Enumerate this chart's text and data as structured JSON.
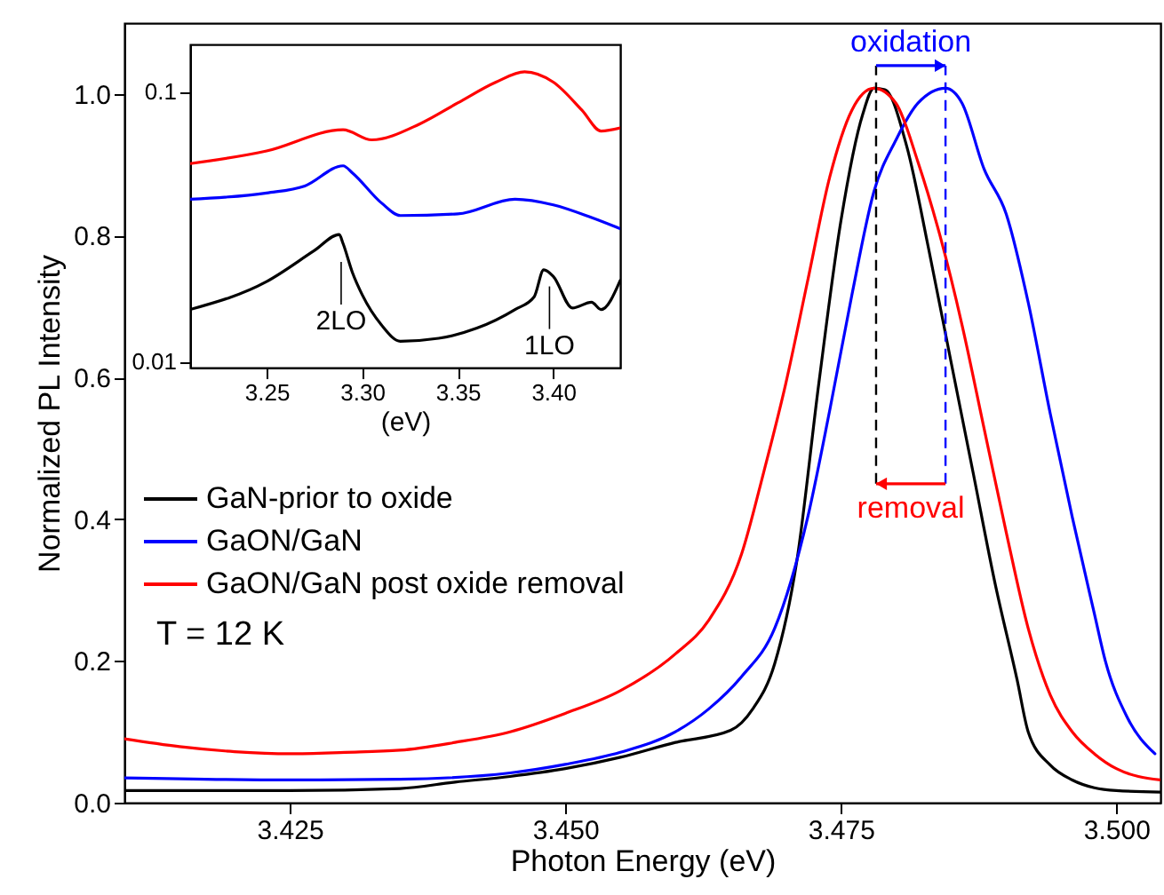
{
  "chart_data": [
    {
      "type": "line",
      "xlabel": "Photon Energy (eV)",
      "ylabel": "Normalized PL Intensity",
      "xlim": [
        3.41,
        3.504
      ],
      "ylim": [
        0,
        1.1
      ],
      "xticks": [
        {
          "value": 3.425,
          "label": "3.425"
        },
        {
          "value": 3.45,
          "label": "3.450"
        },
        {
          "value": 3.475,
          "label": "3.475"
        },
        {
          "value": 3.5,
          "label": "3.500"
        }
      ],
      "yticks": [
        {
          "value": 0,
          "label": "0.0"
        },
        {
          "value": 0.2,
          "label": "0.2"
        },
        {
          "value": 0.4,
          "label": "0.4"
        },
        {
          "value": 0.6,
          "label": "0.6"
        },
        {
          "value": 0.8,
          "label": "0.8"
        },
        {
          "value": 1,
          "label": "1.0"
        }
      ],
      "legend": "left",
      "series": [
        {
          "name": "GaN-prior to oxide",
          "color": "#000000",
          "x": [
            3.41,
            3.425,
            3.435,
            3.44,
            3.445,
            3.45,
            3.455,
            3.46,
            3.465,
            3.467,
            3.469,
            3.471,
            3.473,
            3.475,
            3.477,
            3.478,
            3.479,
            3.481,
            3.483,
            3.485,
            3.487,
            3.489,
            3.491,
            3.492,
            3.494,
            3.496,
            3.498,
            3.5,
            3.504
          ],
          "values": [
            0.017,
            0.017,
            0.02,
            0.029,
            0.037,
            0.048,
            0.064,
            0.085,
            0.102,
            0.132,
            0.196,
            0.34,
            0.591,
            0.82,
            0.972,
            1.008,
            1.006,
            0.925,
            0.779,
            0.622,
            0.466,
            0.309,
            0.173,
            0.1,
            0.053,
            0.032,
            0.021,
            0.017,
            0.015
          ]
        },
        {
          "name": "GaON/GaN",
          "color": "#0000ff",
          "x": [
            3.41,
            3.425,
            3.435,
            3.445,
            3.45,
            3.455,
            3.46,
            3.463,
            3.466,
            3.469,
            3.472,
            3.474,
            3.476,
            3.478,
            3.48,
            3.482,
            3.4845,
            3.486,
            3.488,
            3.49,
            3.492,
            3.494,
            3.496,
            3.498,
            3.499,
            3.501,
            3.5035
          ],
          "values": [
            0.035,
            0.032,
            0.033,
            0.042,
            0.054,
            0.071,
            0.1,
            0.132,
            0.178,
            0.246,
            0.403,
            0.554,
            0.716,
            0.862,
            0.935,
            0.987,
            1.008,
            0.987,
            0.894,
            0.831,
            0.706,
            0.549,
            0.403,
            0.267,
            0.2,
            0.12,
            0.069
          ]
        },
        {
          "name": "GaON/GaN post oxide removal",
          "color": "#ff0000",
          "x": [
            3.41,
            3.415,
            3.42,
            3.425,
            3.43,
            3.435,
            3.44,
            3.445,
            3.45,
            3.455,
            3.46,
            3.463,
            3.466,
            3.468,
            3.47,
            3.472,
            3.474,
            3.476,
            3.478,
            3.48,
            3.482,
            3.484,
            3.486,
            3.488,
            3.49,
            3.492,
            3.494,
            3.496,
            3.498,
            3.5,
            3.504
          ],
          "values": [
            0.09,
            0.079,
            0.072,
            0.069,
            0.071,
            0.074,
            0.085,
            0.1,
            0.126,
            0.158,
            0.21,
            0.257,
            0.351,
            0.466,
            0.591,
            0.737,
            0.883,
            0.977,
            1.008,
            0.987,
            0.904,
            0.8,
            0.674,
            0.528,
            0.382,
            0.246,
            0.152,
            0.1,
            0.069,
            0.048,
            0.032
          ]
        }
      ],
      "ref_lines": [
        {
          "axis": "x",
          "value": 3.4782,
          "color": "#000000",
          "line_style": "dashed"
        },
        {
          "axis": "x",
          "value": 3.4845,
          "color": "#0000ff",
          "line_style": "dashed"
        }
      ],
      "annotations": [
        {
          "text": "oxidation",
          "x": 3.4845,
          "y": 1.04
        },
        {
          "text": "removal",
          "x": 3.4782,
          "y": 0.45
        },
        "T = 12 K"
      ]
    },
    {
      "type": "line",
      "xlabel": "(eV)",
      "xlim": [
        3.21,
        3.435
      ],
      "ylim": [
        0.0095,
        0.15
      ],
      "log": "y",
      "xticks": [
        3.25,
        {
          "value": 3.3,
          "label": "3.30"
        },
        3.35,
        {
          "value": 3.4,
          "label": "3.40"
        }
      ],
      "yticks": [
        0.01,
        0.1
      ],
      "series": [
        {
          "color": "#ff0000",
          "x": [
            3.21,
            3.25,
            3.29,
            3.305,
            3.33,
            3.35,
            3.37,
            3.385,
            3.4,
            3.415,
            3.425,
            3.435
          ],
          "values": [
            0.0542,
            0.0604,
            0.0724,
            0.0664,
            0.076,
            0.091,
            0.1087,
            0.1187,
            0.1087,
            0.0855,
            0.0716,
            0.0735
          ]
        },
        {
          "color": "#0000ff",
          "x": [
            3.21,
            3.25,
            3.27,
            3.29,
            3.295,
            3.31,
            3.32,
            3.35,
            3.38,
            3.4,
            3.42,
            3.435
          ],
          "values": [
            0.04,
            0.0422,
            0.0448,
            0.0532,
            0.05,
            0.0388,
            0.0348,
            0.0353,
            0.04,
            0.0381,
            0.0342,
            0.0311
          ]
        },
        {
          "color": "#000000",
          "x": [
            3.21,
            3.25,
            3.275,
            3.288,
            3.29,
            3.295,
            3.3,
            3.31,
            3.32,
            3.34,
            3.36,
            3.38,
            3.39,
            3.395,
            3.4,
            3.41,
            3.42,
            3.425,
            3.435
          ],
          "values": [
            0.0156,
            0.0198,
            0.0258,
            0.0296,
            0.0274,
            0.0213,
            0.0177,
            0.0137,
            0.0119,
            0.0122,
            0.0133,
            0.0156,
            0.0174,
            0.0219,
            0.0207,
            0.0158,
            0.0166,
            0.0156,
            0.02
          ]
        }
      ],
      "annotations": [
        {
          "text": "2LO",
          "x": 3.289,
          "y": 0.0234
        },
        {
          "text": "1LO",
          "x": 3.398,
          "y": 0.019
        }
      ]
    }
  ]
}
